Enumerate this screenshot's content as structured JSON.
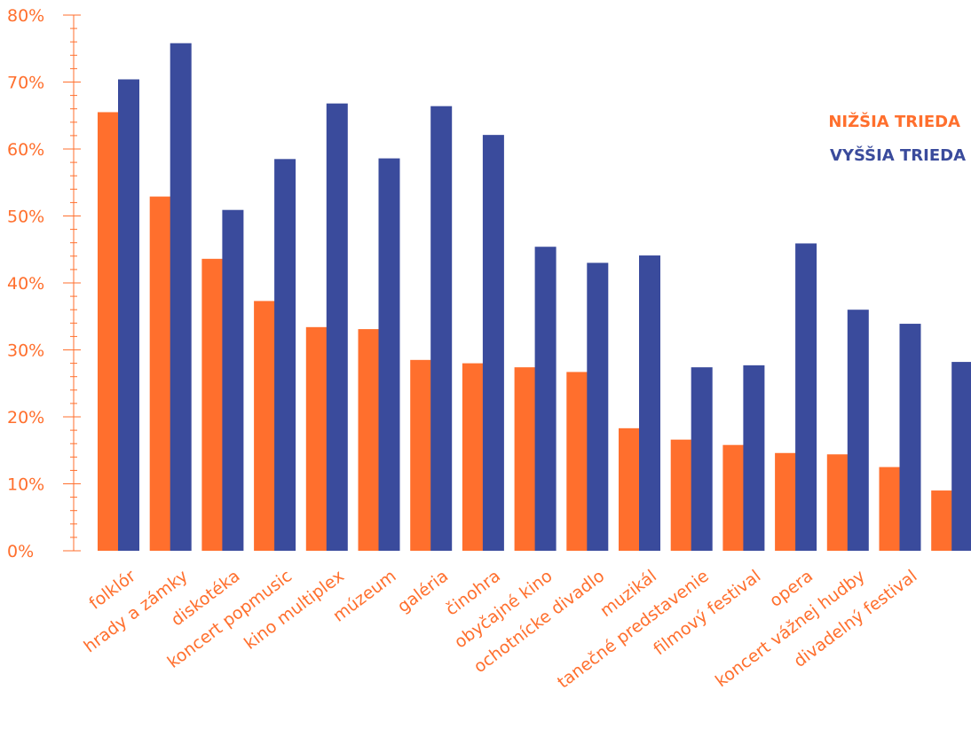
{
  "colors": {
    "lower": "#ff6f2d",
    "upper": "#3a4b9c",
    "axis": "#ff6f2d"
  },
  "chart_data": {
    "type": "bar",
    "categories": [
      "folklór",
      "hrady a zámky",
      "diskotéka",
      "koncert popmusic",
      "kino multiplex",
      "múzeum",
      "galéria",
      "činohra",
      "obyčajné kino",
      "ochotnícke divadlo",
      "muzikál",
      "tanečné predstavenie",
      "filmový festival",
      "opera",
      "koncert vážnej hudby",
      "divadelný festival",
      ""
    ],
    "series": [
      {
        "name": "NIŽŠIA TRIEDA",
        "values": [
          65.5,
          52.9,
          43.6,
          37.3,
          33.4,
          33.1,
          28.5,
          28.0,
          27.4,
          26.7,
          18.3,
          16.6,
          15.8,
          14.6,
          14.4,
          12.5,
          9.0
        ]
      },
      {
        "name": "VYŠŠIA TRIEDA",
        "values": [
          70.4,
          75.8,
          50.9,
          58.5,
          66.8,
          58.6,
          66.4,
          62.1,
          45.4,
          43.0,
          44.1,
          27.4,
          27.7,
          45.9,
          36.0,
          33.9,
          28.2
        ]
      }
    ],
    "y_ticks": [
      "0%",
      "10%",
      "20%",
      "30%",
      "40%",
      "50%",
      "60%",
      "70%",
      "80%"
    ],
    "ylim": [
      0,
      80
    ],
    "legend": "right",
    "grid": false
  }
}
